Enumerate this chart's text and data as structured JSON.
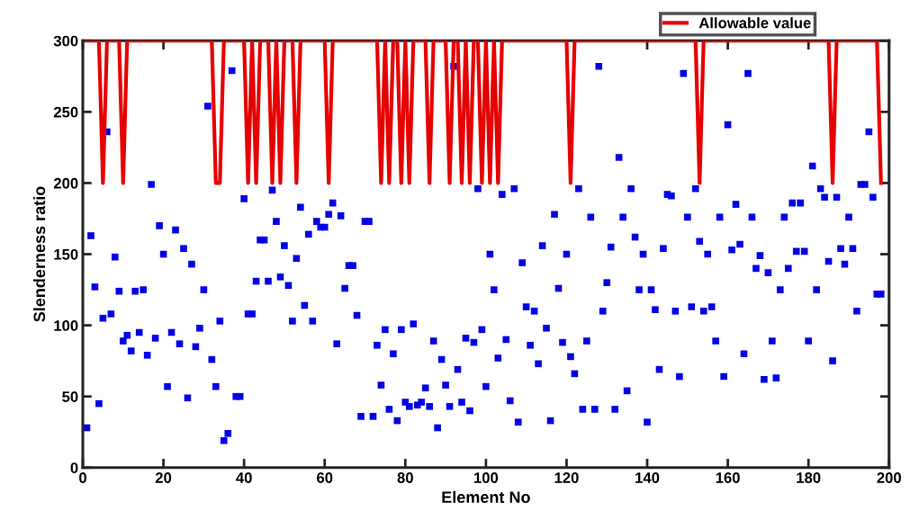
{
  "chart_data": {
    "type": "scatter",
    "xlabel": "Element No",
    "ylabel": "Slenderness ratio",
    "x": [
      1,
      2,
      3,
      4,
      5,
      6,
      7,
      8,
      9,
      10,
      11,
      12,
      13,
      14,
      15,
      16,
      17,
      18,
      19,
      20,
      21,
      22,
      23,
      24,
      25,
      26,
      27,
      28,
      29,
      30,
      31,
      32,
      33,
      34,
      35,
      36,
      37,
      38,
      39,
      40,
      41,
      42,
      43,
      44,
      45,
      46,
      47,
      48,
      49,
      50,
      51,
      52,
      53,
      54,
      55,
      56,
      57,
      58,
      59,
      60,
      61,
      62,
      63,
      64,
      65,
      66,
      67,
      68,
      69,
      70,
      71,
      72,
      73,
      74,
      75,
      76,
      77,
      78,
      79,
      80,
      81,
      82,
      83,
      84,
      85,
      86,
      87,
      88,
      89,
      90,
      91,
      92,
      93,
      94,
      95,
      96,
      97,
      98,
      99,
      100,
      101,
      102,
      103,
      104,
      105,
      106,
      107,
      108,
      109,
      110,
      111,
      112,
      113,
      114,
      115,
      116,
      117,
      118,
      119,
      120,
      121,
      122,
      123,
      124,
      125,
      126,
      127,
      128,
      129,
      130,
      131,
      132,
      133,
      134,
      135,
      136,
      137,
      138,
      139,
      140,
      141,
      142,
      143,
      144,
      145,
      146,
      147,
      148,
      149,
      150,
      151,
      152,
      153,
      154,
      155,
      156,
      157,
      158,
      159,
      160,
      161,
      162,
      163,
      164,
      165,
      166,
      167,
      168,
      169,
      170,
      171,
      172,
      173,
      174,
      175,
      176,
      177,
      178,
      179,
      180,
      181,
      182,
      183,
      184,
      185,
      186,
      187,
      188,
      189,
      190,
      191,
      192,
      193,
      194,
      195,
      196,
      197,
      198
    ],
    "series": [
      {
        "color": "#0000e6",
        "marker": "square",
        "values": [
          28,
          163,
          127,
          45,
          105,
          236,
          108,
          148,
          124,
          89,
          93,
          82,
          124,
          95,
          125,
          79,
          199,
          91,
          170,
          150,
          57,
          95,
          167,
          87,
          154,
          49,
          143,
          85,
          98,
          125,
          254,
          76,
          57,
          103,
          19,
          24,
          279,
          50,
          50,
          189,
          108,
          108,
          131,
          160,
          160,
          131,
          195,
          173,
          134,
          156,
          128,
          103,
          147,
          183,
          114,
          164,
          103,
          173,
          169,
          169,
          178,
          186,
          87,
          177,
          126,
          142,
          142,
          107,
          36,
          173,
          173,
          36,
          86,
          58,
          97,
          41,
          80,
          33,
          97,
          46,
          43,
          101,
          44,
          46,
          56,
          43,
          89,
          28,
          76,
          58,
          43,
          282,
          69,
          46,
          91,
          40,
          88,
          196,
          97,
          57,
          150,
          125,
          77,
          192,
          90,
          47,
          196,
          32,
          144,
          113,
          86,
          110,
          73,
          156,
          98,
          33,
          178,
          126,
          88,
          150,
          78,
          66,
          196,
          41,
          89,
          176,
          41,
          282,
          110,
          130,
          155,
          41,
          218,
          176,
          54,
          196,
          162,
          125,
          150,
          32,
          125,
          111,
          69,
          154,
          192,
          191,
          110,
          64,
          277,
          176,
          113,
          196,
          159,
          110,
          150,
          113,
          89,
          176,
          64,
          241,
          153,
          185,
          157,
          80,
          277,
          176,
          140,
          149,
          62,
          137,
          89,
          63,
          125,
          176,
          140,
          186,
          152,
          186,
          152,
          89,
          212,
          125,
          196,
          190,
          145,
          75,
          190,
          154,
          143,
          176,
          154,
          110,
          199,
          199,
          236,
          190,
          122,
          122
        ]
      },
      {
        "type": "line",
        "name": "Allowable value",
        "color": "#e60000",
        "marker": "none",
        "line_style": "solid",
        "values": [
          300,
          300,
          300,
          300,
          200,
          300,
          300,
          300,
          300,
          200,
          300,
          300,
          300,
          300,
          300,
          300,
          300,
          300,
          300,
          300,
          300,
          300,
          300,
          300,
          300,
          300,
          300,
          300,
          300,
          300,
          300,
          300,
          200,
          200,
          300,
          300,
          300,
          300,
          300,
          300,
          200,
          300,
          200,
          300,
          300,
          300,
          200,
          300,
          200,
          300,
          300,
          300,
          200,
          300,
          300,
          300,
          300,
          300,
          300,
          300,
          200,
          300,
          300,
          300,
          300,
          300,
          300,
          300,
          300,
          300,
          300,
          300,
          300,
          200,
          300,
          200,
          300,
          300,
          200,
          300,
          200,
          300,
          300,
          300,
          300,
          200,
          300,
          300,
          300,
          300,
          200,
          300,
          300,
          200,
          300,
          200,
          300,
          300,
          200,
          300,
          200,
          300,
          200,
          300,
          300,
          300,
          300,
          300,
          300,
          300,
          300,
          300,
          300,
          300,
          300,
          300,
          300,
          300,
          300,
          300,
          200,
          300,
          300,
          300,
          300,
          300,
          300,
          300,
          300,
          300,
          300,
          300,
          300,
          300,
          300,
          300,
          300,
          300,
          300,
          300,
          300,
          300,
          300,
          300,
          300,
          300,
          300,
          300,
          300,
          300,
          300,
          300,
          200,
          300,
          300,
          300,
          300,
          300,
          300,
          300,
          300,
          300,
          300,
          300,
          300,
          300,
          300,
          300,
          300,
          300,
          300,
          300,
          300,
          300,
          300,
          300,
          300,
          300,
          300,
          300,
          300,
          300,
          300,
          300,
          300,
          200,
          300,
          300,
          300,
          300,
          300,
          300,
          300,
          300,
          300,
          300,
          300,
          200
        ]
      }
    ],
    "xlim": [
      0,
      200
    ],
    "xticks": [
      0,
      20,
      40,
      60,
      80,
      100,
      120,
      140,
      160,
      180,
      200
    ],
    "ylim": [
      0,
      300
    ],
    "yticks": [
      0,
      50,
      100,
      150,
      200,
      250,
      300
    ],
    "grid": false,
    "legend": "top right"
  }
}
